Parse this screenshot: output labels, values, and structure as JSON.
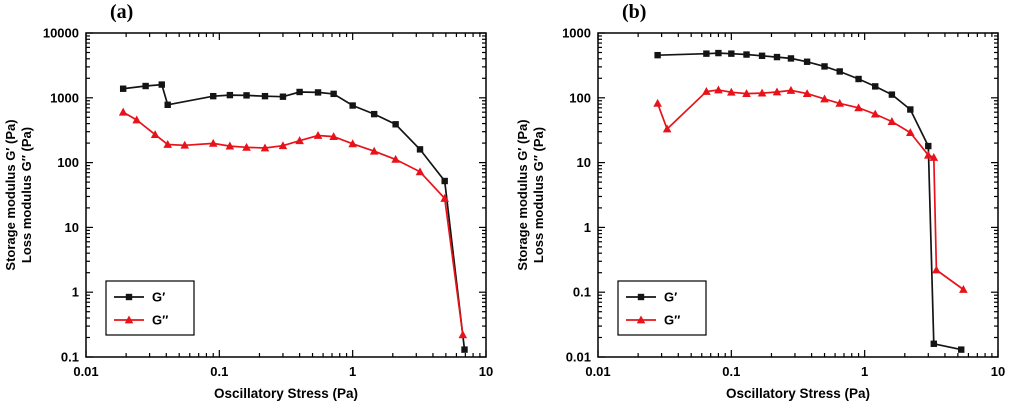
{
  "chart_data": [
    {
      "type": "line",
      "panel_label": "(a)",
      "xlabel": "Oscillatory Stress (Pa)",
      "ylabel_lines": [
        "Storage modulus G′ (Pa)",
        "Loss modulus   G″ (Pa)"
      ],
      "xscale": "log",
      "yscale": "log",
      "xlim": [
        0.01,
        10
      ],
      "ylim": [
        0.1,
        10000
      ],
      "x_tick_labels": [
        "0.01",
        "0.1",
        "1",
        "10"
      ],
      "y_tick_labels": [
        "0.1",
        "1",
        "10",
        "100",
        "1000",
        "10000"
      ],
      "legend_position": "lower-left",
      "grid": false,
      "series": [
        {
          "name": "G′",
          "marker": "square",
          "color": "#141414",
          "x": [
            0.019,
            0.028,
            0.037,
            0.041,
            0.09,
            0.12,
            0.16,
            0.22,
            0.3,
            0.4,
            0.55,
            0.72,
            1.0,
            1.45,
            2.1,
            3.2,
            4.9,
            6.9
          ],
          "y": [
            1380,
            1520,
            1600,
            780,
            1060,
            1100,
            1090,
            1060,
            1040,
            1230,
            1210,
            1150,
            760,
            560,
            390,
            160,
            52,
            0.13
          ]
        },
        {
          "name": "G″",
          "marker": "triangle",
          "color": "#e8131a",
          "x": [
            0.019,
            0.024,
            0.033,
            0.041,
            0.055,
            0.09,
            0.12,
            0.16,
            0.22,
            0.3,
            0.4,
            0.55,
            0.72,
            1.0,
            1.45,
            2.1,
            3.2,
            4.9,
            6.7
          ],
          "y": [
            600,
            455,
            270,
            190,
            185,
            198,
            180,
            172,
            168,
            182,
            218,
            262,
            252,
            195,
            150,
            112,
            72,
            28,
            0.22
          ]
        }
      ]
    },
    {
      "type": "line",
      "panel_label": "(b)",
      "xlabel": "Oscillatory Stress (Pa)",
      "ylabel_lines": [
        "Storage modulus G′ (Pa)",
        "Loss modulus   G″ (Pa)"
      ],
      "xscale": "log",
      "yscale": "log",
      "xlim": [
        0.01,
        10
      ],
      "ylim": [
        0.01,
        1000
      ],
      "x_tick_labels": [
        "0.01",
        "0.1",
        "1",
        "10"
      ],
      "y_tick_labels": [
        "0.01",
        "0.1",
        "1",
        "10",
        "100",
        "1000"
      ],
      "legend_position": "lower-left",
      "grid": false,
      "series": [
        {
          "name": "G′",
          "marker": "square",
          "color": "#141414",
          "x": [
            0.028,
            0.065,
            0.08,
            0.1,
            0.13,
            0.17,
            0.22,
            0.28,
            0.37,
            0.5,
            0.65,
            0.9,
            1.2,
            1.6,
            2.2,
            3.0,
            3.3,
            5.3
          ],
          "y": [
            455,
            480,
            490,
            480,
            465,
            445,
            425,
            405,
            360,
            305,
            255,
            195,
            150,
            112,
            66,
            18,
            0.016,
            0.013
          ]
        },
        {
          "name": "G″",
          "marker": "triangle",
          "color": "#e8131a",
          "x": [
            0.028,
            0.033,
            0.065,
            0.08,
            0.1,
            0.13,
            0.17,
            0.22,
            0.28,
            0.37,
            0.5,
            0.65,
            0.9,
            1.2,
            1.6,
            2.2,
            3.0,
            3.3,
            3.45,
            5.5
          ],
          "y": [
            82,
            33,
            125,
            132,
            122,
            116,
            118,
            123,
            130,
            116,
            96,
            82,
            70,
            56,
            43,
            29,
            13,
            12,
            0.22,
            0.11
          ]
        }
      ]
    }
  ]
}
